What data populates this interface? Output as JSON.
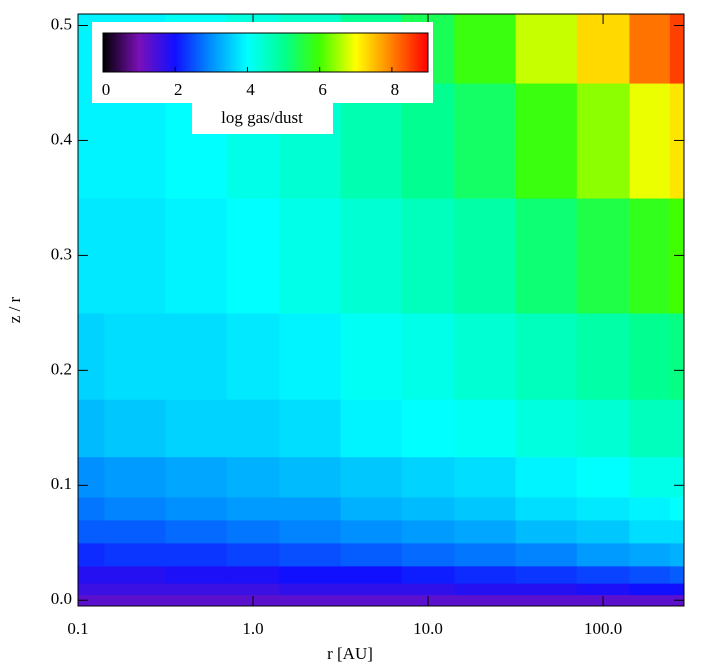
{
  "chart_data": {
    "type": "contour",
    "x_label": "r [AU]",
    "y_label": "z / r",
    "x_log": true,
    "xlim": [
      0.1,
      290
    ],
    "xticks": [
      0.1,
      {
        "value": 1,
        "label": "1.0"
      },
      {
        "value": 10,
        "label": "10.0"
      },
      {
        "value": 100,
        "label": "100.0"
      }
    ],
    "ylim": [
      -0.005,
      0.51
    ],
    "yticks": [
      {
        "value": 0,
        "label": "0.0"
      },
      0.1,
      0.2,
      0.3,
      0.4,
      0.5
    ],
    "x": [
      0.1,
      0.2,
      0.5,
      1,
      2,
      5,
      10,
      20,
      50,
      100,
      200,
      290
    ],
    "y": [
      0,
      0.01,
      0.02,
      0.04,
      0.06,
      0.08,
      0.1,
      0.15,
      0.2,
      0.3,
      0.4,
      0.5
    ],
    "z": [
      [
        1.3,
        1.3,
        1.3,
        1.3,
        1.3,
        1.3,
        1.3,
        1.3,
        1.3,
        1.3,
        1.3,
        1.3
      ],
      [
        1.6,
        1.6,
        1.6,
        1.6,
        1.7,
        1.7,
        1.7,
        1.8,
        1.8,
        1.9,
        2.0,
        2.0
      ],
      [
        1.8,
        1.8,
        1.9,
        1.9,
        2.0,
        2.0,
        2.1,
        2.2,
        2.3,
        2.4,
        2.5,
        2.6
      ],
      [
        2.2,
        2.3,
        2.3,
        2.4,
        2.5,
        2.6,
        2.7,
        2.8,
        2.9,
        3.1,
        3.2,
        3.3
      ],
      [
        2.6,
        2.6,
        2.7,
        2.8,
        2.9,
        3.0,
        3.1,
        3.2,
        3.4,
        3.5,
        3.7,
        3.7
      ],
      [
        2.8,
        2.9,
        3.0,
        3.1,
        3.1,
        3.3,
        3.4,
        3.5,
        3.7,
        3.8,
        3.9,
        4.0
      ],
      [
        3.0,
        3.1,
        3.2,
        3.3,
        3.4,
        3.5,
        3.6,
        3.7,
        3.9,
        4.0,
        4.2,
        4.2
      ],
      [
        3.4,
        3.5,
        3.6,
        3.6,
        3.7,
        3.9,
        4.0,
        4.1,
        4.3,
        4.4,
        4.6,
        4.6
      ],
      [
        3.6,
        3.7,
        3.7,
        3.8,
        3.9,
        4.1,
        4.2,
        4.4,
        4.6,
        4.8,
        5.0,
        5.1
      ],
      [
        3.8,
        3.8,
        3.9,
        4.0,
        4.2,
        4.4,
        4.6,
        4.8,
        5.2,
        5.5,
        5.8,
        6.0
      ],
      [
        3.9,
        3.9,
        4.0,
        4.2,
        4.4,
        4.7,
        5.0,
        5.3,
        5.9,
        6.4,
        6.9,
        7.2
      ],
      [
        3.9,
        3.9,
        4.1,
        4.3,
        4.5,
        5.0,
        5.4,
        5.9,
        6.7,
        7.3,
        8.1,
        8.5
      ]
    ],
    "colorbar": {
      "label": "log gas/dust",
      "lim": [
        0,
        9
      ],
      "ticks": [
        0,
        2,
        4,
        6,
        8
      ],
      "colormap": [
        "#000000",
        "#7a10b8",
        "#1010ff",
        "#0090ff",
        "#00ffff",
        "#00ff90",
        "#40ff00",
        "#ffff00",
        "#ff8000",
        "#ff0000"
      ]
    }
  }
}
